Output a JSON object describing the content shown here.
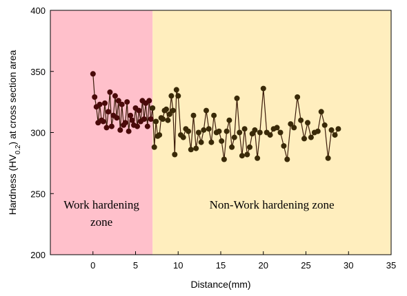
{
  "chart_data": {
    "type": "line",
    "xlabel": "Distance(mm)",
    "ylabel_parts": {
      "before": "Hardness (HV",
      "subscript": "0.2",
      "after": ") at cross section area"
    },
    "xlim": [
      -5,
      35
    ],
    "ylim": [
      200,
      400
    ],
    "xticks": [
      0,
      5,
      10,
      15,
      20,
      25,
      30,
      35
    ],
    "yticks": [
      200,
      250,
      300,
      350,
      400
    ],
    "grid": false,
    "zones": [
      {
        "label_lines": [
          "Work hardening",
          "zone"
        ],
        "x_range": [
          -5,
          7
        ],
        "color": "#ffc0cb"
      },
      {
        "label_lines": [
          "Non-Work hardening zone"
        ],
        "x_range": [
          7,
          35
        ],
        "color": "#ffeebe"
      }
    ],
    "series": [
      {
        "color_work_zone": "#4a0a0a",
        "color_non_work_zone": "#3a2a08",
        "line_color": "#3a1a08",
        "x": [
          0,
          0.2,
          0.4,
          0.6,
          0.8,
          1.0,
          1.2,
          1.4,
          1.6,
          1.8,
          2.0,
          2.2,
          2.4,
          2.6,
          2.8,
          3.0,
          3.2,
          3.4,
          3.6,
          3.8,
          4.0,
          4.2,
          4.4,
          4.6,
          4.8,
          5.0,
          5.2,
          5.4,
          5.6,
          5.8,
          6.0,
          6.2,
          6.4,
          6.6,
          6.8,
          7.0,
          7.2,
          7.4,
          7.6,
          7.8,
          8.0,
          8.2,
          8.4,
          8.6,
          8.8,
          9.0,
          9.2,
          9.4,
          9.6,
          9.8,
          10.0,
          10.3,
          10.6,
          10.9,
          11.2,
          11.5,
          11.8,
          12.1,
          12.4,
          12.7,
          13.0,
          13.3,
          13.6,
          13.9,
          14.2,
          14.5,
          14.8,
          15.1,
          15.4,
          15.7,
          16.0,
          16.3,
          16.6,
          16.9,
          17.2,
          17.5,
          17.8,
          18.1,
          18.4,
          18.7,
          19.0,
          19.3,
          19.6,
          20.0,
          20.4,
          20.8,
          21.2,
          21.6,
          22.0,
          22.4,
          22.8,
          23.2,
          23.6,
          24.0,
          24.4,
          24.8,
          25.2,
          25.6,
          26.0,
          26.4,
          26.8,
          27.2,
          27.6,
          28.0,
          28.4,
          28.8
        ],
        "y": [
          348,
          329,
          321,
          308,
          323,
          310,
          309,
          324,
          304,
          317,
          333,
          305,
          314,
          330,
          312,
          326,
          302,
          323,
          306,
          308,
          325,
          301,
          314,
          310,
          306,
          320,
          305,
          318,
          309,
          326,
          311,
          324,
          305,
          326,
          311,
          320,
          288,
          309,
          297,
          298,
          312,
          311,
          318,
          319,
          310,
          315,
          330,
          318,
          282,
          335,
          330,
          298,
          296,
          303,
          301,
          286,
          314,
          287,
          300,
          292,
          302,
          318,
          303,
          292,
          314,
          300,
          301,
          293,
          278,
          301,
          310,
          288,
          296,
          328,
          300,
          281,
          303,
          282,
          288,
          299,
          302,
          279,
          300,
          336,
          300,
          298,
          303,
          304,
          300,
          289,
          278,
          307,
          304,
          329,
          310,
          295,
          308,
          296,
          300,
          301,
          317,
          306,
          279,
          302,
          298,
          303
        ]
      }
    ]
  }
}
